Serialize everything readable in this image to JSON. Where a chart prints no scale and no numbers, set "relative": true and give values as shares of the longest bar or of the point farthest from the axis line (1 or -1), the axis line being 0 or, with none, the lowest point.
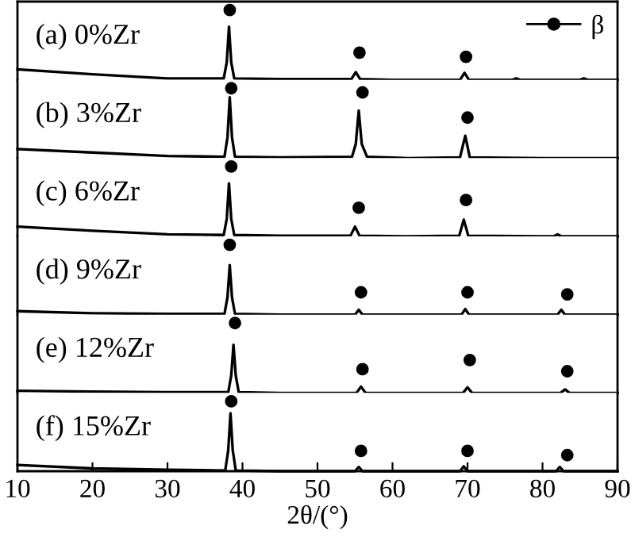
{
  "chart_data": [
    {
      "type": "line",
      "relative": true,
      "xlim": [
        10,
        90
      ],
      "tick_labels": false,
      "legend": "top right",
      "series": [
        {
          "name": "(a) 0%Zr",
          "color": "#000000",
          "x": [
            10,
            20,
            30,
            37.5,
            37.9,
            38.2,
            38.5,
            38.9,
            45,
            54.5,
            55.1,
            55.7,
            60,
            69.0,
            69.6,
            70.2,
            76,
            76.5,
            77,
            85,
            85.5,
            86,
            90
          ],
          "values": [
            0.15,
            0.08,
            0.02,
            0.02,
            0.25,
            0.76,
            0.25,
            0.02,
            0.01,
            0.01,
            0.11,
            0.01,
            0.0,
            0.0,
            0.1,
            0.0,
            0.0,
            0.02,
            0.0,
            0.0,
            0.02,
            0.0,
            0.0
          ]
        },
        {
          "type": "scatter",
          "name": "β",
          "marker": "circle",
          "color": "#000000",
          "x": [
            38.3,
            55.6,
            69.8
          ],
          "values": [
            1,
            0.39,
            0.33
          ]
        }
      ]
    },
    {
      "type": "line",
      "relative": true,
      "xlim": [
        10,
        90
      ],
      "tick_labels": false,
      "series": [
        {
          "name": "(b) 3%Zr",
          "color": "#000000",
          "x": [
            10,
            20,
            30,
            37.6,
            38.0,
            38.3,
            38.6,
            39.0,
            45,
            54.6,
            55.1,
            55.5,
            55.9,
            56.6,
            62,
            69.0,
            69.7,
            70.3,
            80,
            90
          ],
          "values": [
            0.13,
            0.08,
            0.03,
            0.02,
            0.3,
            0.87,
            0.3,
            0.02,
            0.01,
            0.02,
            0.2,
            0.68,
            0.2,
            0.02,
            0.0,
            0.01,
            0.32,
            0.01,
            0.0,
            0.0
          ]
        },
        {
          "type": "scatter",
          "marker": "circle",
          "color": "#000000",
          "x": [
            38.5,
            56.0,
            70.0
          ],
          "values": [
            1,
            0.94,
            0.58
          ]
        }
      ]
    },
    {
      "type": "line",
      "relative": true,
      "xlim": [
        10,
        90
      ],
      "tick_labels": false,
      "series": [
        {
          "name": "(c) 6%Zr",
          "color": "#000000",
          "x": [
            10,
            20,
            30,
            37.5,
            37.9,
            38.2,
            38.5,
            38.9,
            45,
            54.4,
            55.0,
            55.6,
            62,
            68.9,
            69.5,
            70.1,
            80,
            81.5,
            82,
            82.5,
            90
          ],
          "values": [
            0.14,
            0.08,
            0.03,
            0.02,
            0.25,
            0.76,
            0.25,
            0.02,
            0.01,
            0.01,
            0.14,
            0.01,
            0.0,
            0.01,
            0.24,
            0.01,
            0.0,
            0.0,
            0.03,
            0.0,
            0.0
          ]
        },
        {
          "type": "scatter",
          "marker": "circle",
          "color": "#000000",
          "x": [
            38.5,
            55.5,
            69.8
          ],
          "values": [
            1,
            0.41,
            0.52
          ]
        }
      ]
    },
    {
      "type": "line",
      "relative": true,
      "xlim": [
        10,
        90
      ],
      "tick_labels": false,
      "series": [
        {
          "name": "(d) 9%Zr",
          "color": "#000000",
          "x": [
            10,
            20,
            30,
            37.6,
            38.0,
            38.3,
            38.6,
            39.0,
            45,
            55.0,
            55.5,
            56.0,
            62,
            69.2,
            69.7,
            70.2,
            80,
            82.0,
            82.5,
            83.0,
            90
          ],
          "values": [
            0.05,
            0.02,
            0.01,
            0.01,
            0.25,
            0.71,
            0.25,
            0.01,
            0.0,
            0.0,
            0.07,
            0.0,
            0.0,
            0.0,
            0.08,
            0.0,
            0.0,
            0.0,
            0.07,
            0.0,
            0.0
          ]
        },
        {
          "type": "scatter",
          "marker": "circle",
          "color": "#000000",
          "x": [
            38.3,
            55.8,
            70.0,
            83.3
          ],
          "values": [
            1,
            0.32,
            0.32,
            0.29
          ]
        }
      ]
    },
    {
      "type": "line",
      "relative": true,
      "xlim": [
        10,
        90
      ],
      "tick_labels": false,
      "series": [
        {
          "name": "(e) 12%Zr",
          "color": "#000000",
          "x": [
            10,
            20,
            30,
            38.1,
            38.5,
            38.8,
            39.1,
            39.5,
            45,
            55.2,
            55.8,
            56.4,
            62,
            69.4,
            70.0,
            70.6,
            80,
            82.4,
            83.0,
            83.6,
            90
          ],
          "values": [
            0.03,
            0.02,
            0.01,
            0.01,
            0.25,
            0.69,
            0.25,
            0.01,
            0.0,
            0.0,
            0.09,
            0.0,
            0.0,
            0.0,
            0.08,
            0.0,
            0.0,
            0.0,
            0.05,
            0.0,
            0.0
          ]
        },
        {
          "type": "scatter",
          "marker": "circle",
          "color": "#000000",
          "x": [
            39.0,
            56.0,
            70.3,
            83.3
          ],
          "values": [
            1,
            0.34,
            0.47,
            0.31
          ]
        }
      ]
    },
    {
      "type": "line",
      "relative": true,
      "xlim": [
        10,
        90
      ],
      "xticks": [
        10,
        20,
        30,
        40,
        50,
        60,
        70,
        80,
        90
      ],
      "tick_labels": "x",
      "xlabel": "2θ/(°)",
      "series": [
        {
          "name": "(f) 15%Zr",
          "color": "#000000",
          "x": [
            10,
            20,
            30,
            37.7,
            38.1,
            38.4,
            38.7,
            39.1,
            45,
            55.0,
            55.5,
            56.0,
            62,
            69.0,
            69.5,
            70.0,
            80,
            81.8,
            82.3,
            82.8,
            90
          ],
          "values": [
            0.09,
            0.04,
            0.02,
            0.01,
            0.3,
            0.83,
            0.3,
            0.01,
            0.0,
            0.0,
            0.06,
            0.0,
            0.0,
            0.0,
            0.07,
            0.0,
            0.0,
            0.0,
            0.06,
            0.0,
            0.0
          ]
        },
        {
          "type": "scatter",
          "marker": "circle",
          "color": "#000000",
          "x": [
            38.5,
            55.8,
            70.0,
            83.3
          ],
          "values": [
            1,
            0.29,
            0.29,
            0.23
          ]
        }
      ]
    }
  ]
}
